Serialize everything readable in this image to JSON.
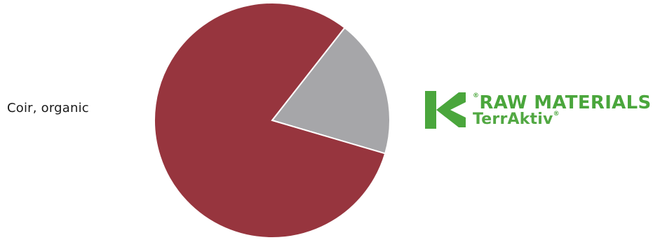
{
  "left_label": "Coir, organic",
  "brand": {
    "line1": "RAW MATERIALS",
    "line2": "TerrAktiv",
    "reg_mark": "®",
    "logo_color": "#4aa63c"
  },
  "chart_data": {
    "type": "pie",
    "title": "",
    "slices": [
      {
        "value": 19,
        "color": "#a6a6a9"
      },
      {
        "value": 81,
        "color": "#97353e"
      }
    ],
    "start_angle_deg": -52,
    "direction": "clockwise",
    "stroke": "#ffffff"
  }
}
